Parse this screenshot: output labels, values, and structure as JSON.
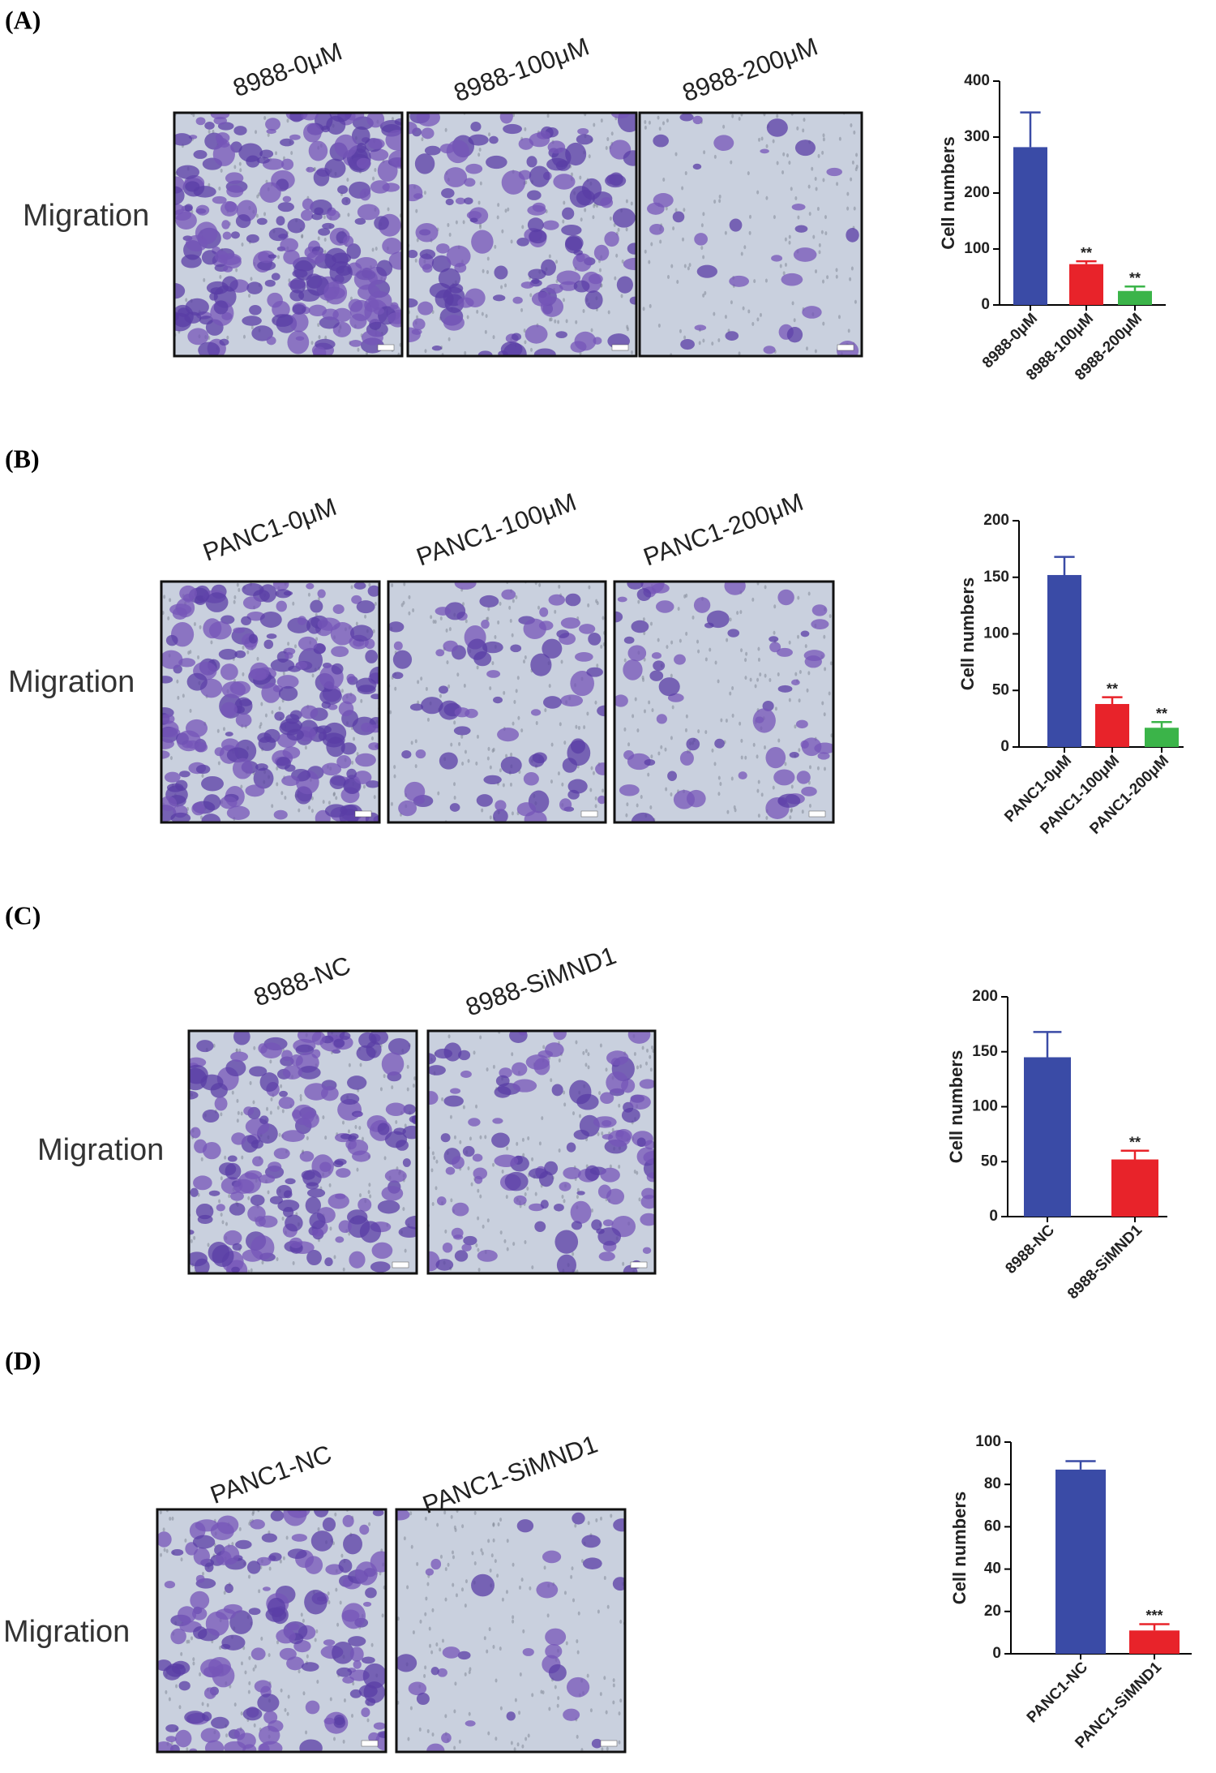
{
  "chart_data": [
    {
      "type": "bar",
      "panel_label": "(A)",
      "row_label": "Migration",
      "image_labels": [
        "8988-0μM",
        "8988-100μM",
        "8988-200μM"
      ],
      "ylabel": "Cell numbers",
      "categories": [
        "8988-0μM",
        "8988-100μM",
        "8988-200μM"
      ],
      "values": [
        282,
        73,
        25
      ],
      "errors": [
        62,
        5,
        8
      ],
      "colors": [
        "#3a4ba6",
        "#e8232a",
        "#3bb449"
      ],
      "annotations": [
        null,
        "**",
        "**"
      ],
      "ylim": [
        0,
        400
      ],
      "yticks": [
        0,
        100,
        200,
        300,
        400
      ]
    },
    {
      "type": "bar",
      "panel_label": "(B)",
      "row_label": "Migration",
      "image_labels": [
        "PANC1-0μM",
        "PANC1-100μM",
        "PANC1-200μM"
      ],
      "ylabel": "Cell numbers",
      "categories": [
        "PANC1-0μM",
        "PANC1-100μM",
        "PANC1-200μM"
      ],
      "values": [
        152,
        38,
        17
      ],
      "errors": [
        16,
        6,
        5
      ],
      "colors": [
        "#3a4ba6",
        "#e8232a",
        "#3bb449"
      ],
      "annotations": [
        null,
        "**",
        "**"
      ],
      "ylim": [
        0,
        200
      ],
      "yticks": [
        0,
        50,
        100,
        150,
        200
      ]
    },
    {
      "type": "bar",
      "panel_label": "(C)",
      "row_label": "Migration",
      "image_labels": [
        "8988-NC",
        "8988-SiMND1"
      ],
      "ylabel": "Cell numbers",
      "categories": [
        "8988-NC",
        "8988-SiMND1"
      ],
      "values": [
        145,
        52
      ],
      "errors": [
        23,
        8
      ],
      "colors": [
        "#3a4ba6",
        "#e8232a"
      ],
      "annotations": [
        null,
        "**"
      ],
      "ylim": [
        0,
        200
      ],
      "yticks": [
        0,
        50,
        100,
        150,
        200
      ]
    },
    {
      "type": "bar",
      "panel_label": "(D)",
      "row_label": "Migration",
      "image_labels": [
        "PANC1-NC",
        "PANC1-SiMND1"
      ],
      "ylabel": "Cell numbers",
      "categories": [
        "PANC1-NC",
        "PANC1-SiMND1"
      ],
      "values": [
        87,
        11
      ],
      "errors": [
        4,
        3
      ],
      "colors": [
        "#3a4ba6",
        "#e8232a"
      ],
      "annotations": [
        null,
        "***"
      ],
      "ylim": [
        0,
        100
      ],
      "yticks": [
        0,
        20,
        40,
        60,
        80,
        100
      ]
    }
  ]
}
